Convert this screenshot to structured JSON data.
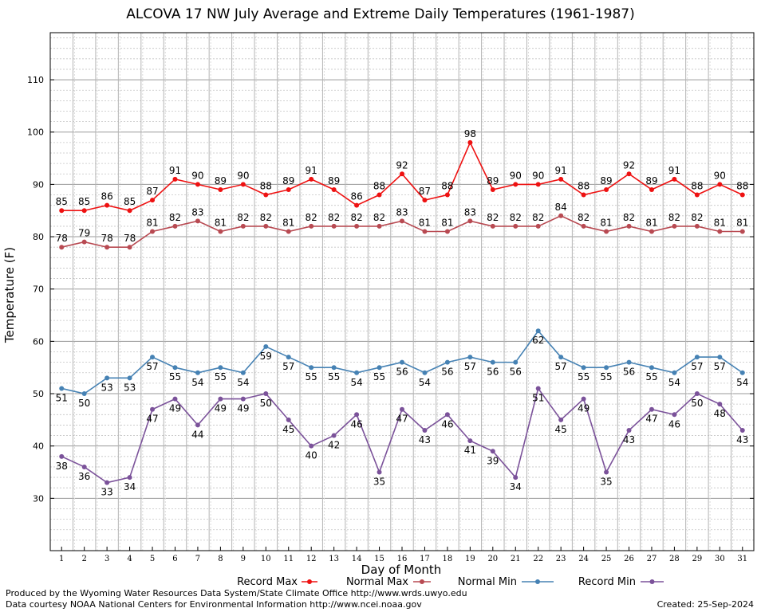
{
  "chart_data": {
    "type": "line",
    "title": "ALCOVA 17 NW July Average and Extreme Daily Temperatures (1961-1987)",
    "xlabel": "Day of Month",
    "ylabel": "Temperature (F)",
    "x": [
      1,
      2,
      3,
      4,
      5,
      6,
      7,
      8,
      9,
      10,
      11,
      12,
      13,
      14,
      15,
      16,
      17,
      18,
      19,
      20,
      21,
      22,
      23,
      24,
      25,
      26,
      27,
      28,
      29,
      30,
      31
    ],
    "xlim": [
      0.5,
      31.5
    ],
    "ylim": [
      20,
      119
    ],
    "yticks": [
      30,
      40,
      50,
      60,
      70,
      80,
      90,
      100,
      110
    ],
    "grid": true,
    "legend_position": "bottom",
    "series": [
      {
        "name": "Record Max",
        "color": "#ee1111",
        "values": [
          85,
          85,
          86,
          85,
          87,
          91,
          90,
          89,
          90,
          88,
          89,
          91,
          89,
          86,
          88,
          92,
          87,
          88,
          98,
          89,
          90,
          90,
          91,
          88,
          89,
          92,
          89,
          91,
          88,
          90,
          88
        ]
      },
      {
        "name": "Normal Max",
        "color": "#b84a52",
        "values": [
          78,
          79,
          78,
          78,
          81,
          82,
          83,
          81,
          82,
          82,
          81,
          82,
          82,
          82,
          82,
          83,
          81,
          81,
          83,
          82,
          82,
          82,
          84,
          82,
          81,
          82,
          81,
          82,
          82,
          81,
          81
        ]
      },
      {
        "name": "Normal Min",
        "color": "#4682b4",
        "values": [
          51,
          50,
          53,
          53,
          57,
          55,
          54,
          55,
          54,
          59,
          57,
          55,
          55,
          54,
          55,
          56,
          54,
          56,
          57,
          56,
          56,
          62,
          57,
          55,
          55,
          56,
          55,
          54,
          57,
          57,
          54
        ]
      },
      {
        "name": "Record Min",
        "color": "#7b529a",
        "values": [
          38,
          36,
          33,
          34,
          47,
          49,
          44,
          49,
          49,
          50,
          45,
          40,
          42,
          46,
          35,
          47,
          43,
          46,
          41,
          39,
          34,
          51,
          45,
          49,
          35,
          43,
          47,
          46,
          50,
          48,
          43
        ]
      }
    ]
  },
  "footer": {
    "produced_by": "Produced by the Wyoming Water Resources Data System/State Climate Office http://www.wrds.uwyo.edu",
    "data_courtesy": "Data courtesy NOAA National Centers for Environmental Information http://www.ncei.noaa.gov",
    "created": "Created:  25-Sep-2024"
  }
}
